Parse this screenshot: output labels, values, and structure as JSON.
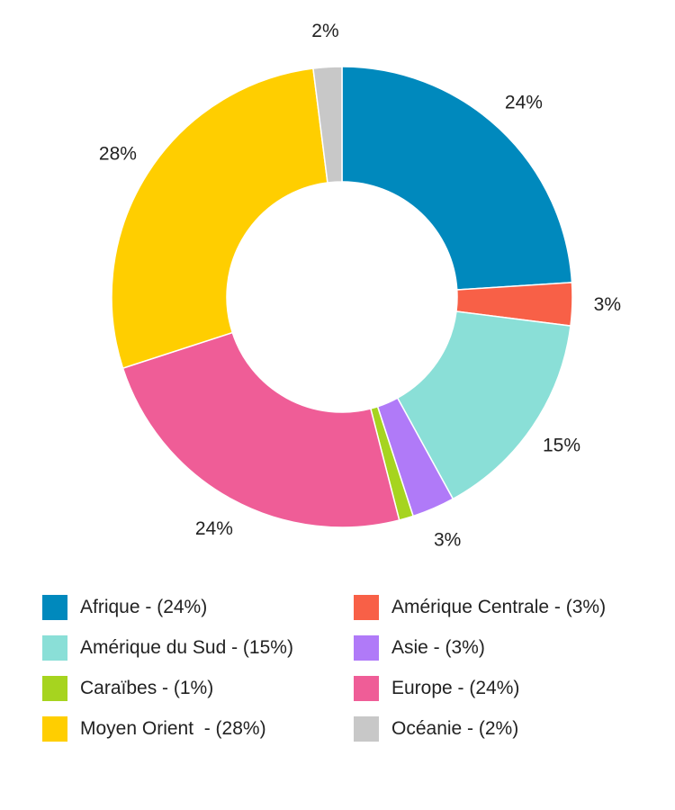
{
  "chart_data": {
    "type": "pie",
    "subtype": "donut",
    "slices": [
      {
        "label": "Afrique",
        "value": 24,
        "display": "24%",
        "color": "#0089BD",
        "legend": "Afrique - (24%)"
      },
      {
        "label": "Amérique Centrale",
        "value": 3,
        "display": "3%",
        "color": "#F86047",
        "legend": "Amérique Centrale - (3%)"
      },
      {
        "label": "Amérique du Sud",
        "value": 15,
        "display": "15%",
        "color": "#8ADFD7",
        "legend": "Amérique du Sud - (15%)"
      },
      {
        "label": "Asie",
        "value": 3,
        "display": "3%",
        "color": "#B07AF8",
        "legend": "Asie - (3%)"
      },
      {
        "label": "Caraïbes",
        "value": 1,
        "display": "",
        "color": "#A6D41F",
        "legend": "Caraïbes - (1%)"
      },
      {
        "label": "Europe",
        "value": 24,
        "display": "24%",
        "color": "#EF5D97",
        "legend": "Europe - (24%)"
      },
      {
        "label": "Moyen Orient",
        "value": 28,
        "display": "28%",
        "color": "#FFCE00",
        "legend": "Moyen Orient  - (28%)"
      },
      {
        "label": "Océanie",
        "value": 2,
        "display": "2%",
        "color": "#C8C8C8",
        "legend": "Océanie - (2%)"
      }
    ],
    "legend_position": "bottom"
  }
}
